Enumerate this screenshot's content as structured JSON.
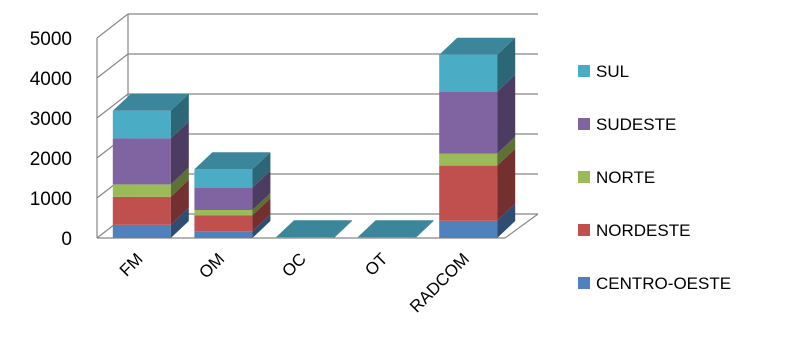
{
  "chart_data": {
    "type": "bar",
    "stacked": true,
    "style": "3d-stacked-column",
    "categories": [
      "FM",
      "OM",
      "OC",
      "OT",
      "RADCOM"
    ],
    "series": [
      {
        "name": "CENTRO-OESTE",
        "color": "#4F81BD",
        "values": [
          330,
          170,
          0,
          0,
          430
        ]
      },
      {
        "name": "NORDESTE",
        "color": "#C0504D",
        "values": [
          700,
          400,
          0,
          0,
          1380
        ]
      },
      {
        "name": "NORTE",
        "color": "#9BBB59",
        "values": [
          310,
          130,
          0,
          0,
          300
        ]
      },
      {
        "name": "SUDESTE",
        "color": "#8064A2",
        "values": [
          1150,
          560,
          0,
          0,
          1550
        ]
      },
      {
        "name": "SUL",
        "color": "#4BACC6",
        "values": [
          690,
          460,
          20,
          20,
          920
        ]
      }
    ],
    "yticks": [
      "0",
      "1000",
      "2000",
      "3000",
      "4000",
      "5000"
    ],
    "ylim": [
      0,
      5000
    ],
    "grid": true,
    "legend": "right"
  }
}
